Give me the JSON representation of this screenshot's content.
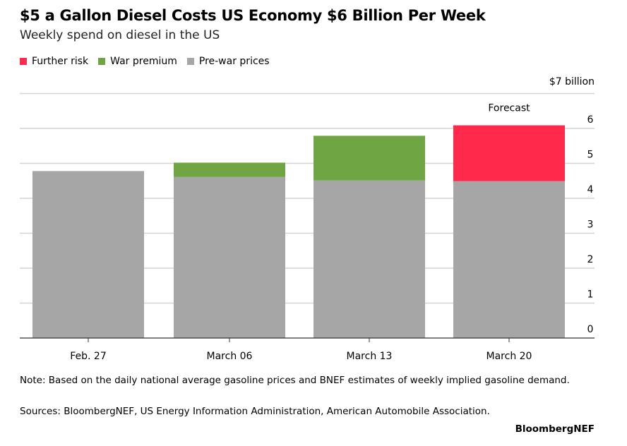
{
  "title": "$5 a Gallon Diesel Costs US Economy $6 Billion Per Week",
  "subtitle": "Weekly spend on diesel in the US",
  "note": "Note: Based on the daily national average gasoline prices and BNEF estimates of weekly implied gasoline demand.",
  "sources": "Sources: BloombergNEF, US Energy Information Administration, American Automobile Association.",
  "brand": "BloombergNEF",
  "chart_data": {
    "type": "bar",
    "stacked": true,
    "categories": [
      "Feb. 27",
      "March 06",
      "March 13",
      "March 20"
    ],
    "series": [
      {
        "name": "Pre-war prices",
        "color": "#a6a6a6",
        "values": [
          4.78,
          4.61,
          4.51,
          4.49
        ]
      },
      {
        "name": "War premium",
        "color": "#70a544",
        "values": [
          0,
          0.41,
          1.28,
          0
        ]
      },
      {
        "name": "Further risk",
        "color": "#ff2a4b",
        "values": [
          0,
          0,
          0,
          1.6
        ]
      }
    ],
    "legend_order": [
      "Further risk",
      "War premium",
      "Pre-war prices"
    ],
    "legend_placement": "top-left",
    "ylim": [
      0,
      7
    ],
    "yticks": [
      "0",
      "1",
      "2",
      "3",
      "4",
      "5",
      "6"
    ],
    "ytop_label": "$7 billion",
    "y_axis_side": "right",
    "grid": true,
    "annotations": [
      {
        "category": "March 20",
        "text": "Forecast"
      }
    ]
  }
}
